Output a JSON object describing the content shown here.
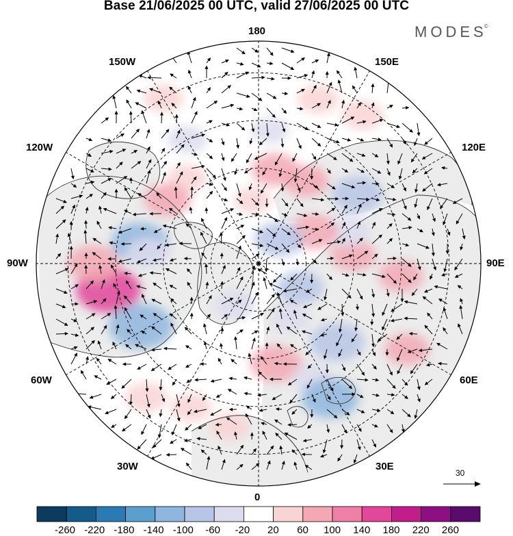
{
  "title": "Base 21/06/2025 00 UTC, valid 27/06/2025 00 UTC",
  "logo": "MODES",
  "logo_mark": "©",
  "longitude_labels": {
    "top": "180",
    "bottom": "0",
    "left": "90W",
    "right": "90E",
    "w150": "150W",
    "e150": "150E",
    "w120": "120W",
    "e120": "120E",
    "w60": "60W",
    "e60": "60E",
    "w30": "30W",
    "e30": "30E"
  },
  "reference_vector": "30",
  "colorbar": {
    "ticks": [
      "-260",
      "-220",
      "-180",
      "-140",
      "-100",
      "-60",
      "-20",
      "20",
      "60",
      "100",
      "140",
      "180",
      "220",
      "260"
    ],
    "colors": [
      "#0d3b5e",
      "#155b8a",
      "#2a7ab4",
      "#5b9fcf",
      "#8fb6de",
      "#b7c6e6",
      "#dcdcef",
      "#ffffff",
      "#f9d4d4",
      "#f3a8b4",
      "#ee7fa6",
      "#e2479a",
      "#c21d8a",
      "#8e0f82",
      "#5a0b6e"
    ]
  },
  "anomaly_blobs": [
    {
      "lon": 160,
      "lat": 35,
      "value": 45
    },
    {
      "lon": 145,
      "lat": 33,
      "value": 50
    },
    {
      "lon": -150,
      "lat": 30,
      "value": 40
    },
    {
      "lon": -140,
      "lat": 55,
      "value": 40
    },
    {
      "lon": -125,
      "lat": 55,
      "value": 70
    },
    {
      "lon": -100,
      "lat": 52,
      "value": -110
    },
    {
      "lon": -95,
      "lat": 55,
      "value": -60
    },
    {
      "lon": -80,
      "lat": 42,
      "value": 140
    },
    {
      "lon": -90,
      "lat": 38,
      "value": 90
    },
    {
      "lon": -62,
      "lat": 48,
      "value": -140
    },
    {
      "lon": -40,
      "lat": 35,
      "value": 50
    },
    {
      "lon": -25,
      "lat": 40,
      "value": 45
    },
    {
      "lon": -10,
      "lat": 38,
      "value": 40
    },
    {
      "lon": 10,
      "lat": 58,
      "value": 90
    },
    {
      "lon": 25,
      "lat": 50,
      "value": -50
    },
    {
      "lon": 28,
      "lat": 42,
      "value": -110
    },
    {
      "lon": 45,
      "lat": 55,
      "value": -100
    },
    {
      "lon": 60,
      "lat": 36,
      "value": 60
    },
    {
      "lon": 85,
      "lat": 45,
      "value": 60
    },
    {
      "lon": 95,
      "lat": 60,
      "value": 60
    },
    {
      "lon": 110,
      "lat": 60,
      "value": -60
    },
    {
      "lon": 125,
      "lat": 52,
      "value": -90
    },
    {
      "lon": 120,
      "lat": 70,
      "value": 80
    },
    {
      "lon": 150,
      "lat": 60,
      "value": 60
    },
    {
      "lon": 170,
      "lat": 60,
      "value": 70
    },
    {
      "lon": -175,
      "lat": 70,
      "value": 30
    },
    {
      "lon": 140,
      "lat": 80,
      "value": -80
    },
    {
      "lon": 60,
      "lat": 75,
      "value": -70
    },
    {
      "lon": 30,
      "lat": 70,
      "value": -40
    },
    {
      "lon": -30,
      "lat": 75,
      "value": -50
    },
    {
      "lon": -150,
      "lat": 45,
      "value": -40
    },
    {
      "lon": 175,
      "lat": 48,
      "value": -30
    }
  ]
}
